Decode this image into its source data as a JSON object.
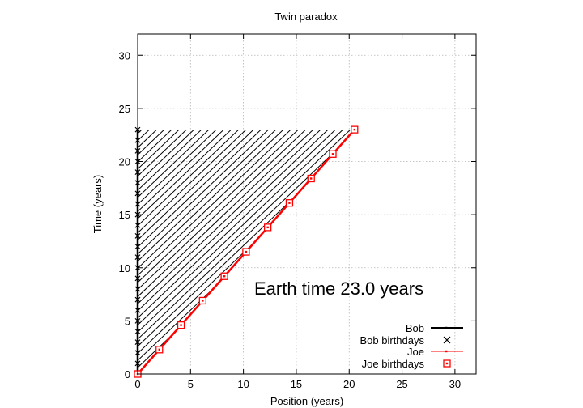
{
  "chart_data": {
    "type": "line",
    "title": "Twin paradox",
    "xlabel": "Position (years)",
    "ylabel": "Time (years)",
    "xlim": [
      0,
      32
    ],
    "ylim": [
      0,
      32
    ],
    "x_ticks": [
      0,
      5,
      10,
      15,
      20,
      25,
      30
    ],
    "y_ticks": [
      0,
      5,
      10,
      15,
      20,
      25,
      30
    ],
    "grid": true,
    "grid_style": "dotted",
    "legend_position": "bottom-right",
    "annotation": "Earth time 23.0 years",
    "hatched_region": {
      "vertices": [
        [
          0,
          0
        ],
        [
          0,
          23
        ],
        [
          20.5,
          23
        ]
      ],
      "color": "#000000"
    },
    "series": [
      {
        "name": "Bob",
        "style": "line",
        "color": "#000000",
        "x": [
          0,
          0
        ],
        "y": [
          0,
          23
        ]
      },
      {
        "name": "Bob birthdays",
        "style": "x-markers",
        "color": "#000000",
        "x": [
          0,
          0,
          0,
          0,
          0,
          0,
          0,
          0,
          0,
          0,
          0,
          0,
          0,
          0,
          0,
          0,
          0,
          0,
          0,
          0,
          0,
          0,
          0,
          0
        ],
        "y": [
          0,
          1,
          2,
          3,
          4,
          5,
          6,
          7,
          8,
          9,
          10,
          11,
          12,
          13,
          14,
          15,
          16,
          17,
          18,
          19,
          20,
          21,
          22,
          23
        ]
      },
      {
        "name": "Joe",
        "style": "line",
        "color": "#ff0000",
        "x": [
          0,
          20.5
        ],
        "y": [
          0,
          23
        ]
      },
      {
        "name": "Joe birthdays",
        "style": "square-markers",
        "color": "#ff0000",
        "x": [
          0,
          2.05,
          4.1,
          6.15,
          8.2,
          10.25,
          12.3,
          14.35,
          16.4,
          18.45,
          20.5
        ],
        "y": [
          0,
          2.3,
          4.6,
          6.9,
          9.2,
          11.5,
          13.8,
          16.1,
          18.4,
          20.7,
          23.0
        ]
      }
    ]
  }
}
